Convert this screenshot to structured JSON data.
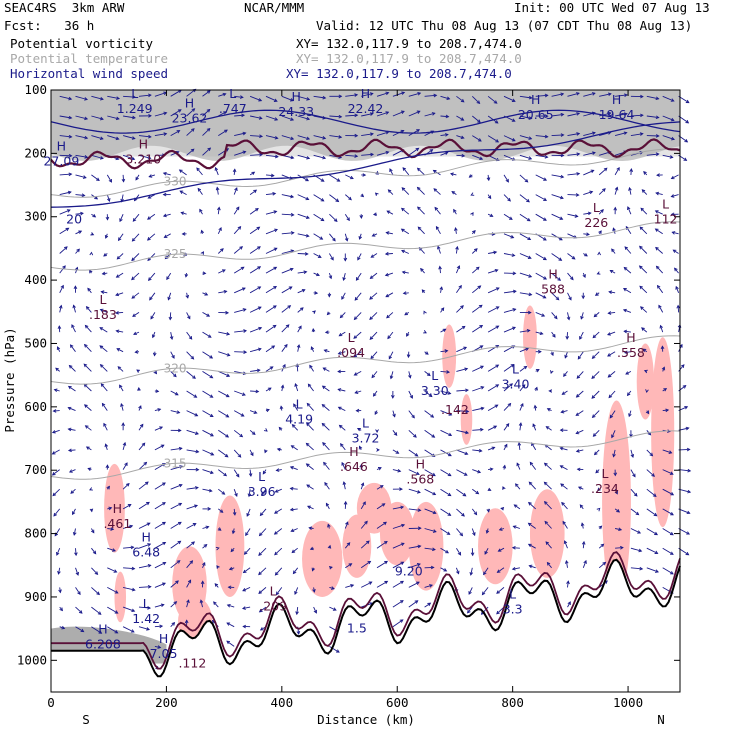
{
  "header": {
    "model": "SEAC4RS  3km ARW",
    "center": "NCAR/MMM",
    "init": "Init: 00 UTC Wed 07 Aug 13",
    "fcst": "Fcst:   36 h",
    "valid": "Valid: 12 UTC Thu 08 Aug 13 (07 CDT Thu 08 Aug 13)"
  },
  "fields": [
    {
      "name": "Potential vorticity",
      "xy": "XY= 132.0,117.9 to 208.7,474.0",
      "color": "#000000"
    },
    {
      "name": "Potential temperature",
      "xy": "XY= 132.0,117.9 to 208.7,474.0",
      "color": "#a8a8a8"
    },
    {
      "name": "Horizontal wind speed",
      "xy": "XY= 132.0,117.9 to 208.7,474.0",
      "color": "#1a1a8a"
    }
  ],
  "axes": {
    "ylabel": "Pressure (hPa)",
    "xlabel": "Distance (km)",
    "south": "S",
    "north": "N",
    "yticks": [
      100,
      200,
      300,
      400,
      500,
      600,
      700,
      800,
      900,
      1000
    ],
    "xticks": [
      0,
      200,
      400,
      600,
      800,
      1000
    ]
  },
  "chart_data": {
    "type": "cross-section",
    "xlim": [
      0,
      1090
    ],
    "ylim": [
      1050,
      100
    ],
    "grid": false,
    "isentropes": [
      {
        "value": 330,
        "label": "330"
      },
      {
        "value": 325,
        "label": "325"
      },
      {
        "value": 320,
        "label": "320"
      },
      {
        "value": 315,
        "label": "315"
      }
    ],
    "annotations": [
      {
        "mark": "L",
        "value": "1.249",
        "x": 145,
        "p": 125,
        "color": "navy"
      },
      {
        "mark": "H",
        "value": "23.62",
        "x": 240,
        "p": 140,
        "color": "navy"
      },
      {
        "mark": "L",
        "value": ".747",
        "x": 315,
        "p": 125,
        "color": "navy"
      },
      {
        "mark": "H",
        "value": "24.33",
        "x": 425,
        "p": 130,
        "color": "navy"
      },
      {
        "mark": "H",
        "value": "22.42",
        "x": 545,
        "p": 125,
        "color": "navy"
      },
      {
        "mark": "H",
        "value": "20.65",
        "x": 840,
        "p": 135,
        "color": "navy"
      },
      {
        "mark": "H",
        "value": "19.64",
        "x": 980,
        "p": 135,
        "color": "navy"
      },
      {
        "mark": "H",
        "value": "27.09",
        "x": 18,
        "p": 208,
        "color": "navy"
      },
      {
        "mark": "H",
        "value": "3.210",
        "x": 160,
        "p": 205,
        "color": "purple"
      },
      {
        "mark": "",
        "value": "20",
        "x": 40,
        "p": 300,
        "color": "navy"
      },
      {
        "mark": "L",
        "value": "226",
        "x": 945,
        "p": 305,
        "color": "purple"
      },
      {
        "mark": "L",
        "value": "112",
        "x": 1065,
        "p": 300,
        "color": "purple"
      },
      {
        "mark": "H",
        "value": "588",
        "x": 870,
        "p": 410,
        "color": "purple"
      },
      {
        "mark": "L",
        "value": ".183",
        "x": 90,
        "p": 450,
        "color": "purple"
      },
      {
        "mark": "L",
        "value": ".094",
        "x": 520,
        "p": 510,
        "color": "purple"
      },
      {
        "mark": "H",
        "value": ".558",
        "x": 1005,
        "p": 510,
        "color": "purple"
      },
      {
        "mark": "L",
        "value": "3.30",
        "x": 665,
        "p": 570,
        "color": "navy"
      },
      {
        "mark": "L",
        "value": "3.40",
        "x": 805,
        "p": 560,
        "color": "navy"
      },
      {
        "mark": "",
        "value": ".142",
        "x": 700,
        "p": 600,
        "color": "purple"
      },
      {
        "mark": "L",
        "value": "4.19",
        "x": 430,
        "p": 615,
        "color": "navy"
      },
      {
        "mark": "L",
        "value": "3.72",
        "x": 545,
        "p": 645,
        "color": "navy"
      },
      {
        "mark": "H",
        "value": ".646",
        "x": 525,
        "p": 690,
        "color": "purple"
      },
      {
        "mark": "H",
        "value": ".568",
        "x": 640,
        "p": 710,
        "color": "purple"
      },
      {
        "mark": "L",
        "value": "3.96",
        "x": 365,
        "p": 730,
        "color": "navy"
      },
      {
        "mark": "L",
        "value": ".234",
        "x": 960,
        "p": 725,
        "color": "purple"
      },
      {
        "mark": "H",
        "value": ".461",
        "x": 115,
        "p": 780,
        "color": "purple"
      },
      {
        "mark": "H",
        "value": "6.48",
        "x": 165,
        "p": 825,
        "color": "navy"
      },
      {
        "mark": "",
        "value": "9.20",
        "x": 620,
        "p": 855,
        "color": "navy"
      },
      {
        "mark": "L",
        "value": ".209",
        "x": 385,
        "p": 910,
        "color": "purple"
      },
      {
        "mark": "L",
        "value": "1.42",
        "x": 165,
        "p": 930,
        "color": "navy"
      },
      {
        "mark": "L",
        "value": "3.3",
        "x": 800,
        "p": 915,
        "color": "navy"
      },
      {
        "mark": "H",
        "value": "6.208",
        "x": 90,
        "p": 970,
        "color": "navy"
      },
      {
        "mark": "H",
        "value": "7.05",
        "x": 195,
        "p": 985,
        "color": "navy"
      },
      {
        "mark": "",
        "value": ".112",
        "x": 245,
        "p": 1000,
        "color": "purple"
      },
      {
        "mark": "",
        "value": "1.5",
        "x": 530,
        "p": 945,
        "color": "navy"
      }
    ]
  },
  "colors": {
    "pv_shading": "#8a8a8a",
    "pv_contour": "#5a1038",
    "isentrope": "#a8a8a8",
    "wind": "#1a1a8a",
    "moist": "#ffb8b8",
    "terrain": "#000000"
  }
}
